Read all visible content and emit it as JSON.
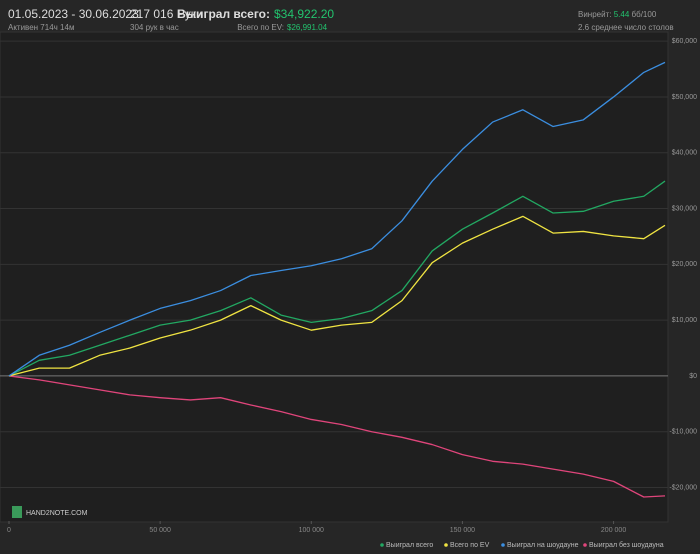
{
  "header": {
    "date_range": "01.05.2023 - 30.06.2023",
    "active": "Активен 714ч 14м",
    "hands": "217 016 Руки",
    "hands_per_hour": "304 рук в час",
    "won_label": "Выиграл всего:",
    "won_value": "$34,922.20",
    "ev_label": "Всего по EV:",
    "ev_value": "$26,991.04",
    "winrate_label": "Винрейт:",
    "winrate_value": "5.44",
    "winrate_unit": "бб/100",
    "tables": "2.6 среднее число столов",
    "logo": "HAND2NOTE.COM"
  },
  "chart_data": {
    "type": "line",
    "legend": "bottom-right",
    "grid": true,
    "x": [
      0,
      10000,
      20000,
      30000,
      40000,
      50000,
      60000,
      70000,
      80000,
      90000,
      100000,
      110000,
      120000,
      130000,
      140000,
      150000,
      160000,
      170000,
      180000,
      190000,
      200000,
      210000,
      217016
    ],
    "xlim": [
      0,
      217016
    ],
    "xticks": [
      0,
      {
        "value": 50000,
        "label": "50 000"
      },
      {
        "value": 100000,
        "label": "100 000"
      },
      {
        "value": 150000,
        "label": "150 000"
      },
      {
        "value": 200000,
        "label": "200 000"
      }
    ],
    "ylim": [
      -26000,
      62000
    ],
    "yticks": [
      {
        "value": -20000,
        "label": "-$20,000"
      },
      {
        "value": -10000,
        "label": "-$10,000"
      },
      {
        "value": 0,
        "label": "$0"
      },
      {
        "value": 10000,
        "label": "$10,000"
      },
      {
        "value": 20000,
        "label": "$20,000"
      },
      {
        "value": 30000,
        "label": "$30,000"
      },
      {
        "value": 40000,
        "label": "$40,000"
      },
      {
        "value": 50000,
        "label": "$50,000"
      },
      {
        "value": 60000,
        "label": "$60,000"
      }
    ],
    "series": [
      {
        "name": "Выиграл всего",
        "color": "#22a862",
        "values": [
          0,
          2800,
          3700,
          5500,
          7300,
          9100,
          10000,
          11700,
          14000,
          10900,
          9600,
          10300,
          11700,
          15300,
          22400,
          26300,
          29200,
          32200,
          29200,
          29500,
          31300,
          32200,
          34922
        ]
      },
      {
        "name": "Всего по EV",
        "color": "#f0e442",
        "values": [
          0,
          1400,
          1400,
          3700,
          5000,
          6800,
          8200,
          10000,
          12600,
          10000,
          8200,
          9100,
          9600,
          13500,
          20300,
          23800,
          26300,
          28600,
          25600,
          25900,
          25100,
          24600,
          26991
        ]
      },
      {
        "name": "Выиграл на шоудауне",
        "color": "#3b8ee0",
        "values": [
          0,
          3700,
          5500,
          7800,
          10000,
          12100,
          13500,
          15300,
          18000,
          18900,
          19750,
          21000,
          22800,
          27800,
          34900,
          40600,
          45500,
          47700,
          44700,
          45900,
          50000,
          54400,
          56200
        ]
      },
      {
        "name": "Выиграл без шоудауна",
        "color": "#e0457b",
        "values": [
          0,
          -700,
          -1600,
          -2500,
          -3400,
          -3900,
          -4300,
          -3900,
          -5200,
          -6400,
          -7800,
          -8700,
          -10000,
          -11000,
          -12300,
          -14100,
          -15300,
          -15800,
          -16700,
          -17600,
          -18900,
          -21700,
          -21500
        ]
      }
    ]
  }
}
